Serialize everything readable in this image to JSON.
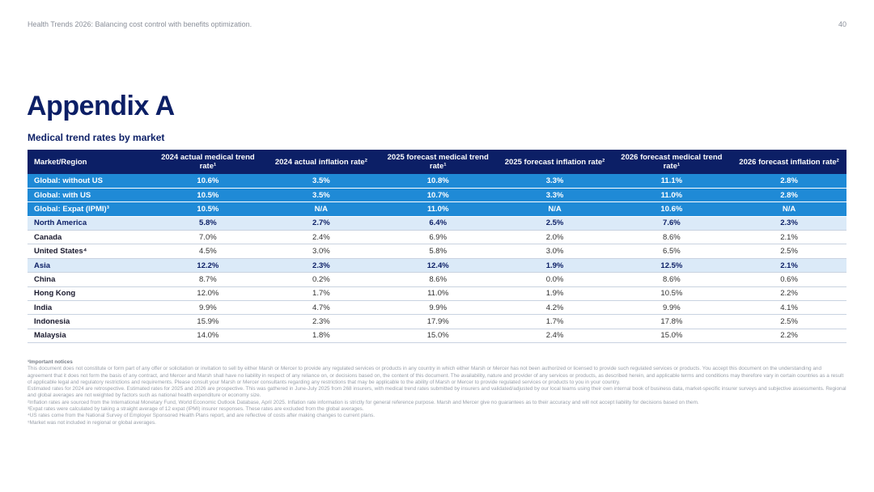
{
  "header": {
    "doc_title": "Health Trends 2026: Balancing cost control with benefits optimization.",
    "page_number": "40"
  },
  "title": "Appendix A",
  "subtitle": "Medical trend rates by market",
  "table": {
    "columns": [
      "Market/Region",
      "2024 actual medical trend rate¹",
      "2024 actual inflation rate²",
      "2025 forecast medical trend rate¹",
      "2025 forecast inflation rate²",
      "2026 forecast medical trend rate¹",
      "2026 forecast inflation rate²"
    ],
    "rows": [
      {
        "type": "global",
        "cells": [
          "Global: without US",
          "10.6%",
          "3.5%",
          "10.8%",
          "3.3%",
          "11.1%",
          "2.8%"
        ]
      },
      {
        "type": "global",
        "cells": [
          "Global: with US",
          "10.5%",
          "3.5%",
          "10.7%",
          "3.3%",
          "11.0%",
          "2.8%"
        ]
      },
      {
        "type": "global",
        "cells": [
          "Global: Expat (IPMI)³",
          "10.5%",
          "N/A",
          "11.0%",
          "N/A",
          "10.6%",
          "N/A"
        ]
      },
      {
        "type": "region",
        "cells": [
          "North America",
          "5.8%",
          "2.7%",
          "6.4%",
          "2.5%",
          "7.6%",
          "2.3%"
        ]
      },
      {
        "type": "country",
        "cells": [
          "Canada",
          "7.0%",
          "2.4%",
          "6.9%",
          "2.0%",
          "8.6%",
          "2.1%"
        ]
      },
      {
        "type": "country",
        "cells": [
          "United States⁴",
          "4.5%",
          "3.0%",
          "5.8%",
          "3.0%",
          "6.5%",
          "2.5%"
        ]
      },
      {
        "type": "region",
        "cells": [
          "Asia",
          "12.2%",
          "2.3%",
          "12.4%",
          "1.9%",
          "12.5%",
          "2.1%"
        ]
      },
      {
        "type": "country",
        "cells": [
          "China",
          "8.7%",
          "0.2%",
          "8.6%",
          "0.0%",
          "8.6%",
          "0.6%"
        ]
      },
      {
        "type": "country",
        "cells": [
          "Hong Kong",
          "12.0%",
          "1.7%",
          "11.0%",
          "1.9%",
          "10.5%",
          "2.2%"
        ]
      },
      {
        "type": "country",
        "cells": [
          "India",
          "9.9%",
          "4.7%",
          "9.9%",
          "4.2%",
          "9.9%",
          "4.1%"
        ]
      },
      {
        "type": "country",
        "cells": [
          "Indonesia",
          "15.9%",
          "2.3%",
          "17.9%",
          "1.7%",
          "17.8%",
          "2.5%"
        ]
      },
      {
        "type": "country",
        "cells": [
          "Malaysia",
          "14.0%",
          "1.8%",
          "15.0%",
          "2.4%",
          "15.0%",
          "2.2%"
        ]
      }
    ]
  },
  "notes": {
    "title": "¹Important notices",
    "lines": [
      "This document does not constitute or form part of any offer or solicitation or invitation to sell by either Marsh or Mercer to provide any regulated services or products in any country in which either Marsh or Mercer has not been authorized or licensed to provide such regulated services or products. You accept this document on the understanding and agreement that it does not form the basis of any contract, and Mercer and Marsh shall have no liability in respect of any reliance on, or decisions based on, the content of this document. The availability, nature and provider of any services or products, as described herein, and applicable terms and conditions may therefore vary in certain countries as a result of applicable legal and regulatory restrictions and requirements. Please consult your Marsh or Mercer consultants regarding any restrictions that may be applicable to the ability of Marsh or Mercer to provide regulated services or products to you in your country.",
      "Estimated rates for 2024 are retrospective. Estimated rates for 2025 and 2026 are prospective. This was gathered in June-July 2025 from 268 insurers, with medical trend rates submitted by insurers and validated/adjusted by our local teams using their own internal book of business data, market-specific insurer surveys and subjective assessments. Regional and global averages are not weighted by factors such as national health expenditure or economy size.",
      "²Inflation rates are sourced from the International Monetary Fund, World Economic Outlook Database, April 2025. Inflation rate information is strictly for general reference purpose. Marsh and Mercer give no guarantees as to their accuracy and will not accept liability for decisions based on them.",
      "³Expat rates were calculated by taking a straight average of 12 expat (IPMI) insurer responses. These rates are excluded from the global averages.",
      "⁴US rates come from the National Survey of Employer Sponsored Health Plans report, and are reflective of costs after making changes to current plans.",
      "⁵Market was not included in regional or global averages."
    ]
  }
}
